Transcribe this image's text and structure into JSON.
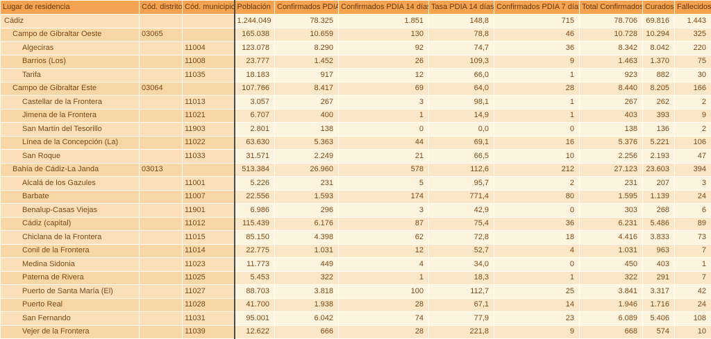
{
  "colors": {
    "header_bg": "#F5A351",
    "header_text": "#66390A",
    "label_bg_light": "#FBDFB8",
    "label_bg_dark": "#F8D7A6",
    "data_bg_light": "#FDF4E0",
    "data_bg_dark": "#FAE7C8",
    "body_text": "#7A4913",
    "divider": "#4A4A4A"
  },
  "chart_data": {
    "type": "table",
    "columns": [
      {
        "key": "lugar",
        "label": "Lugar de residencia",
        "align": "left"
      },
      {
        "key": "cod-distrito",
        "label": "Cód. distrito",
        "align": "left"
      },
      {
        "key": "cod-municipio",
        "label": "Cód. municipio",
        "align": "left"
      },
      {
        "key": "poblacion",
        "label": "Población",
        "align": "right"
      },
      {
        "key": "confirmados-pdia",
        "label": "Confirmados PDIA",
        "align": "right"
      },
      {
        "key": "confirmados-pdia-14-dias",
        "label": "Confirmados PDIA 14 días",
        "align": "right"
      },
      {
        "key": "tasa-pdia-14-dias",
        "label": "Tasa PDIA 14 días",
        "align": "right"
      },
      {
        "key": "confirmados-pdia-7-dias",
        "label": "Confirmados PDIA 7 días",
        "align": "right"
      },
      {
        "key": "total-confirmados",
        "label": "Total Confirmados",
        "align": "right"
      },
      {
        "key": "curados",
        "label": "Curados",
        "align": "right"
      },
      {
        "key": "fallecidos",
        "label": "Fallecidos",
        "align": "right"
      }
    ],
    "rows": [
      {
        "name": "Cádiz",
        "level": 0,
        "distrito": "",
        "municipio": "",
        "values": [
          "1.244.049",
          "78.325",
          "1.851",
          "148,8",
          "715",
          "78.706",
          "69.816",
          "1.443"
        ]
      },
      {
        "name": "Campo de Gibraltar Oeste",
        "level": 1,
        "distrito": "03065",
        "municipio": "",
        "values": [
          "165.038",
          "10.659",
          "130",
          "78,8",
          "46",
          "10.728",
          "10.294",
          "325"
        ]
      },
      {
        "name": "Algeciras",
        "level": 2,
        "distrito": "",
        "municipio": "11004",
        "values": [
          "123.078",
          "8.290",
          "92",
          "74,7",
          "36",
          "8.342",
          "8.042",
          "220"
        ]
      },
      {
        "name": "Barrios (Los)",
        "level": 2,
        "distrito": "",
        "municipio": "11008",
        "values": [
          "23.777",
          "1.452",
          "26",
          "109,3",
          "9",
          "1.463",
          "1.370",
          "75"
        ]
      },
      {
        "name": "Tarifa",
        "level": 2,
        "distrito": "",
        "municipio": "11035",
        "values": [
          "18.183",
          "917",
          "12",
          "66,0",
          "1",
          "923",
          "882",
          "30"
        ]
      },
      {
        "name": "Campo de Gibraltar Este",
        "level": 1,
        "distrito": "03064",
        "municipio": "",
        "values": [
          "107.766",
          "8.417",
          "69",
          "64,0",
          "28",
          "8.440",
          "8.205",
          "166"
        ]
      },
      {
        "name": "Castellar de la Frontera",
        "level": 2,
        "distrito": "",
        "municipio": "11013",
        "values": [
          "3.057",
          "267",
          "3",
          "98,1",
          "1",
          "267",
          "262",
          "2"
        ]
      },
      {
        "name": "Jimena de la Frontera",
        "level": 2,
        "distrito": "",
        "municipio": "11021",
        "values": [
          "6.707",
          "400",
          "1",
          "14,9",
          "1",
          "403",
          "393",
          "9"
        ]
      },
      {
        "name": "San Martín del Tesorillo",
        "level": 2,
        "distrito": "",
        "municipio": "11903",
        "values": [
          "2.801",
          "138",
          "0",
          "0,0",
          "0",
          "138",
          "136",
          "2"
        ]
      },
      {
        "name": "Línea de la Concepción (La)",
        "level": 2,
        "distrito": "",
        "municipio": "11022",
        "values": [
          "63.630",
          "5.363",
          "44",
          "69,1",
          "16",
          "5.376",
          "5.221",
          "106"
        ]
      },
      {
        "name": "San Roque",
        "level": 2,
        "distrito": "",
        "municipio": "11033",
        "values": [
          "31.571",
          "2.249",
          "21",
          "66,5",
          "10",
          "2.256",
          "2.193",
          "47"
        ]
      },
      {
        "name": "Bahía de Cádiz-La Janda",
        "level": 1,
        "distrito": "03013",
        "municipio": "",
        "values": [
          "513.384",
          "26.960",
          "578",
          "112,6",
          "212",
          "27.123",
          "23.603",
          "394"
        ]
      },
      {
        "name": "Alcalá de los Gazules",
        "level": 2,
        "distrito": "",
        "municipio": "11001",
        "values": [
          "5.226",
          "231",
          "5",
          "95,7",
          "2",
          "231",
          "207",
          "3"
        ]
      },
      {
        "name": "Barbate",
        "level": 2,
        "distrito": "",
        "municipio": "11007",
        "values": [
          "22.556",
          "1.593",
          "174",
          "771,4",
          "80",
          "1.595",
          "1.139",
          "24"
        ]
      },
      {
        "name": "Benalup-Casas Viejas",
        "level": 2,
        "distrito": "",
        "municipio": "11901",
        "values": [
          "6.986",
          "296",
          "3",
          "42,9",
          "0",
          "303",
          "268",
          "6"
        ]
      },
      {
        "name": "Cádiz (capital)",
        "level": 2,
        "distrito": "",
        "municipio": "11012",
        "values": [
          "115.439",
          "6.176",
          "87",
          "75,4",
          "36",
          "6.231",
          "5.486",
          "89"
        ]
      },
      {
        "name": "Chiclana de la Frontera",
        "level": 2,
        "distrito": "",
        "municipio": "11015",
        "values": [
          "85.150",
          "4.398",
          "62",
          "72,8",
          "18",
          "4.416",
          "3.833",
          "73"
        ]
      },
      {
        "name": "Conil de la Frontera",
        "level": 2,
        "distrito": "",
        "municipio": "11014",
        "values": [
          "22.775",
          "1.031",
          "12",
          "52,7",
          "4",
          "1.031",
          "963",
          "7"
        ]
      },
      {
        "name": "Medina Sidonia",
        "level": 2,
        "distrito": "",
        "municipio": "11023",
        "values": [
          "11.773",
          "449",
          "4",
          "34,0",
          "0",
          "450",
          "403",
          "1"
        ]
      },
      {
        "name": "Paterna de Rivera",
        "level": 2,
        "distrito": "",
        "municipio": "11025",
        "values": [
          "5.453",
          "322",
          "1",
          "18,3",
          "1",
          "322",
          "291",
          "7"
        ]
      },
      {
        "name": "Puerto de Santa María (El)",
        "level": 2,
        "distrito": "",
        "municipio": "11027",
        "values": [
          "88.703",
          "3.818",
          "100",
          "112,7",
          "25",
          "3.841",
          "3.317",
          "42"
        ]
      },
      {
        "name": "Puerto Real",
        "level": 2,
        "distrito": "",
        "municipio": "11028",
        "values": [
          "41.700",
          "1.938",
          "28",
          "67,1",
          "14",
          "1.946",
          "1.716",
          "24"
        ]
      },
      {
        "name": "San Fernando",
        "level": 2,
        "distrito": "",
        "municipio": "11031",
        "values": [
          "95.001",
          "6.042",
          "74",
          "77,9",
          "23",
          "6.089",
          "5.406",
          "108"
        ]
      },
      {
        "name": "Vejer de la Frontera",
        "level": 2,
        "distrito": "",
        "municipio": "11039",
        "values": [
          "12.622",
          "666",
          "28",
          "221,8",
          "9",
          "668",
          "574",
          "10"
        ]
      }
    ]
  }
}
